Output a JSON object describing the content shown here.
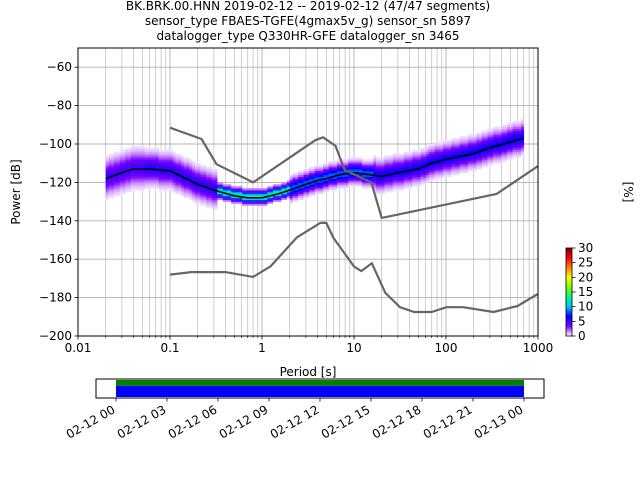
{
  "chart_data": [
    {
      "type": "heatmap",
      "title": [
        "BK.BRK.00.HNN   2019-02-12 -- 2019-02-12  (47/47 segments)",
        "sensor_type FBAES-TGFE(4gmax5v_g) sensor_sn 5897",
        "datalogger_type Q330HR-GFE datalogger_sn 3465"
      ],
      "xlabel": "Period [s]",
      "ylabel": "Power [dB]",
      "xscale": "log",
      "xlim": [
        0.01,
        1000
      ],
      "ylim": [
        -200,
        -50
      ],
      "xticks": [
        0.01,
        0.1,
        1,
        10,
        100,
        1000
      ],
      "xtick_labels": [
        "0.01",
        "0.1",
        "1",
        "10",
        "100",
        "1000"
      ],
      "yticks": [
        -200,
        -180,
        -160,
        -140,
        -120,
        -100,
        -80,
        -60
      ],
      "grid": true,
      "colorbar": {
        "label": "[%]",
        "range": [
          0,
          30
        ],
        "ticks": [
          0,
          5,
          10,
          15,
          20,
          25,
          30
        ],
        "colors": [
          "#ffffff",
          "#8000ff",
          "#0000ff",
          "#00c0ff",
          "#00ff80",
          "#80ff00",
          "#ffff00",
          "#ff8000",
          "#ff0000",
          "#800000"
        ]
      },
      "series": [
        {
          "name": "",
          "role": "mode",
          "color": "#000000",
          "x": [
            0.02,
            0.03,
            0.04,
            0.06,
            0.1,
            0.15,
            0.2,
            0.3,
            0.5,
            0.7,
            1,
            1.5,
            2,
            3,
            4,
            5,
            7,
            10,
            15,
            20,
            30,
            50,
            70,
            100,
            200,
            300,
            500,
            700
          ],
          "y": [
            -118,
            -115,
            -113,
            -113,
            -114,
            -118,
            -121,
            -124,
            -127,
            -128,
            -128,
            -126,
            -124,
            -121,
            -119,
            -118,
            -116,
            -115,
            -116,
            -117,
            -115,
            -113,
            -110,
            -108,
            -105,
            -102,
            -99,
            -97
          ]
        },
        {
          "name": "",
          "role": "noise-model-high",
          "color": "#666666",
          "x": [
            0.1,
            0.22,
            0.32,
            0.8,
            3.8,
            4.6,
            6.3,
            7.9,
            15.4,
            20,
            354.8,
            1000
          ],
          "y": [
            -91.5,
            -97.4,
            -110.5,
            -120,
            -98,
            -96.5,
            -101,
            -113.5,
            -120,
            -138.5,
            -126,
            -111.5
          ]
        },
        {
          "name": "",
          "role": "noise-model-low",
          "color": "#666666",
          "x": [
            0.1,
            0.17,
            0.4,
            0.8,
            1.24,
            2.4,
            4.3,
            5,
            6,
            10,
            12,
            15.6,
            21.9,
            31.6,
            45,
            70,
            101,
            154,
            328,
            600,
            1000
          ],
          "y": [
            -168,
            -166.7,
            -166.7,
            -169.2,
            -163.7,
            -148.6,
            -141.1,
            -141.1,
            -149,
            -163.8,
            -166.2,
            -162.1,
            -177.5,
            -185,
            -187.5,
            -187.5,
            -185,
            -185,
            -187.5,
            -184.4,
            -178
          ]
        }
      ]
    },
    {
      "type": "timeline",
      "xtick_labels": [
        "02-12 00",
        "02-12 03",
        "02-12 06",
        "02-12 09",
        "02-12 12",
        "02-12 15",
        "02-12 18",
        "02-12 21",
        "02-13 00"
      ],
      "bars": [
        {
          "name": "",
          "color": "#008000",
          "start": "02-12 00",
          "end": "02-13 00"
        },
        {
          "name": "",
          "color": "#0000ff",
          "start": "02-12 00",
          "end": "02-13 00"
        }
      ]
    }
  ]
}
